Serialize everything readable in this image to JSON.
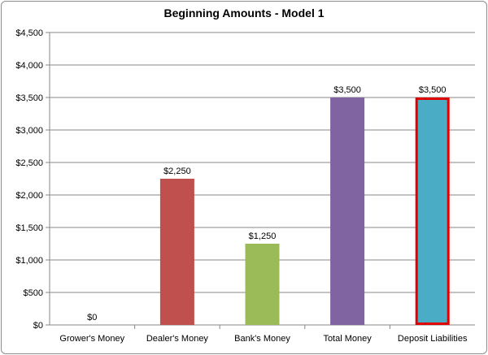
{
  "chart_data": {
    "type": "bar",
    "title": "Beginning Amounts - Model 1",
    "xlabel": "",
    "ylabel": "",
    "categories": [
      "Grower's Money",
      "Dealer's Money",
      "Bank's Money",
      "Total Money",
      "Deposit Liabilities"
    ],
    "values": [
      0,
      2250,
      1250,
      3500,
      3500
    ],
    "data_labels": [
      "$0",
      "$2,250",
      "$1,250",
      "$3,500",
      "$3,500"
    ],
    "ylim": [
      0,
      4500
    ],
    "yticks": [
      0,
      500,
      1000,
      1500,
      2000,
      2500,
      3000,
      3500,
      4000,
      4500
    ],
    "ytick_labels": [
      "$0",
      "$500",
      "$1,000",
      "$1,500",
      "$2,000",
      "$2,500",
      "$3,000",
      "$3,500",
      "$4,000",
      "$4,500"
    ],
    "bar_colors": [
      "#4f81bd",
      "#c0504d",
      "#9bbb59",
      "#8064a2",
      "#4bacc6"
    ],
    "highlight": {
      "category": "Deposit Liabilities",
      "outline_color": "#e00000"
    },
    "grid": true,
    "gridline_color": "#878787",
    "legend": "none"
  }
}
